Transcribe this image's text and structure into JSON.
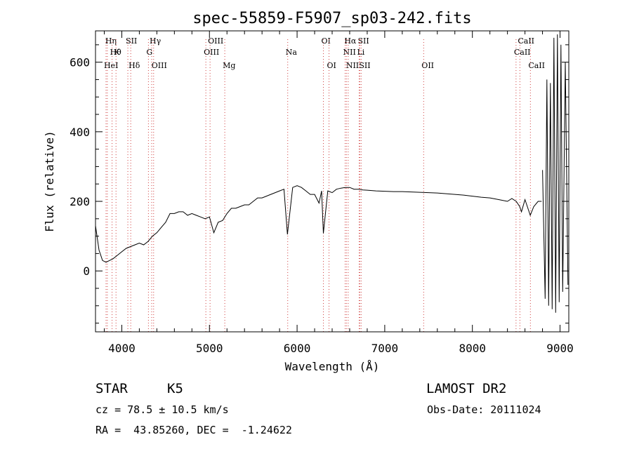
{
  "chart_data": {
    "type": "line",
    "title": "spec-55859-F5907_sp03-242.fits",
    "xlabel": "Wavelength (Å)",
    "ylabel": "Flux (relative)",
    "xlim": [
      3700,
      9100
    ],
    "ylim": [
      -175,
      690
    ],
    "xticks": [
      4000,
      5000,
      6000,
      7000,
      8000,
      9000
    ],
    "yticks": [
      0,
      200,
      400,
      600
    ],
    "grid": false,
    "legend": "none",
    "colors": {
      "line": "#000000",
      "markers": "#d04040"
    },
    "spectrum": {
      "x": [
        3700,
        3740,
        3780,
        3820,
        3860,
        3900,
        3950,
        4000,
        4050,
        4100,
        4150,
        4200,
        4250,
        4300,
        4350,
        4400,
        4450,
        4500,
        4550,
        4600,
        4650,
        4700,
        4750,
        4800,
        4850,
        4900,
        4950,
        5000,
        5050,
        5100,
        5150,
        5200,
        5250,
        5300,
        5350,
        5400,
        5450,
        5500,
        5550,
        5600,
        5650,
        5700,
        5750,
        5800,
        5850,
        5890,
        5950,
        6000,
        6050,
        6100,
        6150,
        6200,
        6250,
        6280,
        6300,
        6350,
        6400,
        6450,
        6500,
        6550,
        6600,
        6650,
        6700,
        6750,
        6800,
        6900,
        7000,
        7100,
        7200,
        7300,
        7400,
        7500,
        7600,
        7700,
        7800,
        7900,
        8000,
        8100,
        8200,
        8300,
        8400,
        8450,
        8500,
        8540,
        8560,
        8600,
        8640,
        8660,
        8700,
        8750,
        8790
      ],
      "y": [
        130,
        60,
        30,
        25,
        30,
        35,
        45,
        55,
        65,
        70,
        75,
        80,
        75,
        85,
        100,
        110,
        125,
        140,
        165,
        165,
        170,
        170,
        160,
        165,
        160,
        155,
        150,
        155,
        110,
        140,
        145,
        165,
        180,
        180,
        185,
        190,
        190,
        200,
        210,
        210,
        215,
        220,
        225,
        230,
        235,
        105,
        240,
        245,
        240,
        230,
        220,
        220,
        195,
        230,
        108,
        230,
        225,
        235,
        238,
        240,
        240,
        235,
        235,
        233,
        232,
        230,
        229,
        228,
        228,
        227,
        226,
        225,
        224,
        222,
        220,
        218,
        215,
        212,
        210,
        205,
        200,
        208,
        200,
        185,
        170,
        205,
        175,
        160,
        185,
        200,
        200
      ]
    },
    "noise_tail": {
      "x": [
        8800,
        8830,
        8850,
        8870,
        8890,
        8910,
        8930,
        8950,
        8970,
        8990,
        9010,
        9030,
        9060,
        9090
      ],
      "y": [
        290,
        -80,
        550,
        -100,
        540,
        -110,
        670,
        -120,
        680,
        -90,
        650,
        -60,
        600,
        -40
      ]
    },
    "line_markers": [
      {
        "wavelength": 3835,
        "label": "Hη",
        "row": 1
      },
      {
        "wavelength": 3889,
        "label": "Hθ",
        "row": 2
      },
      {
        "wavelength": 3934,
        "label": "K",
        "row": 2
      },
      {
        "wavelength": 3820,
        "label": "HeI",
        "row": 3
      },
      {
        "wavelength": 4069,
        "label": "SII",
        "row": 1
      },
      {
        "wavelength": 4102,
        "label": "Hδ",
        "row": 3
      },
      {
        "wavelength": 4341,
        "label": "Hγ",
        "row": 1
      },
      {
        "wavelength": 4304,
        "label": "G",
        "row": 2
      },
      {
        "wavelength": 4363,
        "label": "OIII",
        "row": 3
      },
      {
        "wavelength": 5007,
        "label": "OIII",
        "row": 1
      },
      {
        "wavelength": 4959,
        "label": "OIII",
        "row": 2
      },
      {
        "wavelength": 5175,
        "label": "Mg",
        "row": 3
      },
      {
        "wavelength": 5893,
        "label": "Na",
        "row": 2
      },
      {
        "wavelength": 6300,
        "label": "OI",
        "row": 1
      },
      {
        "wavelength": 6364,
        "label": "OI",
        "row": 3
      },
      {
        "wavelength": 6563,
        "label": "Hα",
        "row": 1
      },
      {
        "wavelength": 6716,
        "label": "SII",
        "row": 1
      },
      {
        "wavelength": 6548,
        "label": "NII",
        "row": 2
      },
      {
        "wavelength": 6708,
        "label": "Li",
        "row": 2
      },
      {
        "wavelength": 6583,
        "label": "NII",
        "row": 3
      },
      {
        "wavelength": 6731,
        "label": "SII",
        "row": 3
      },
      {
        "wavelength": 7444,
        "label": "OII",
        "row": 3
      },
      {
        "wavelength": 8542,
        "label": "CaII",
        "row": 1
      },
      {
        "wavelength": 8498,
        "label": "CaII",
        "row": 2
      },
      {
        "wavelength": 8662,
        "label": "CaII",
        "row": 3
      }
    ]
  },
  "info": {
    "class_label": "STAR",
    "subclass": "K5",
    "survey": "LAMOST DR2",
    "cz": "cz = 78.5 ± 10.5 km/s",
    "obs_date": "Obs-Date: 20111024",
    "coords": "RA =  43.85260, DEC =  -1.24622"
  }
}
